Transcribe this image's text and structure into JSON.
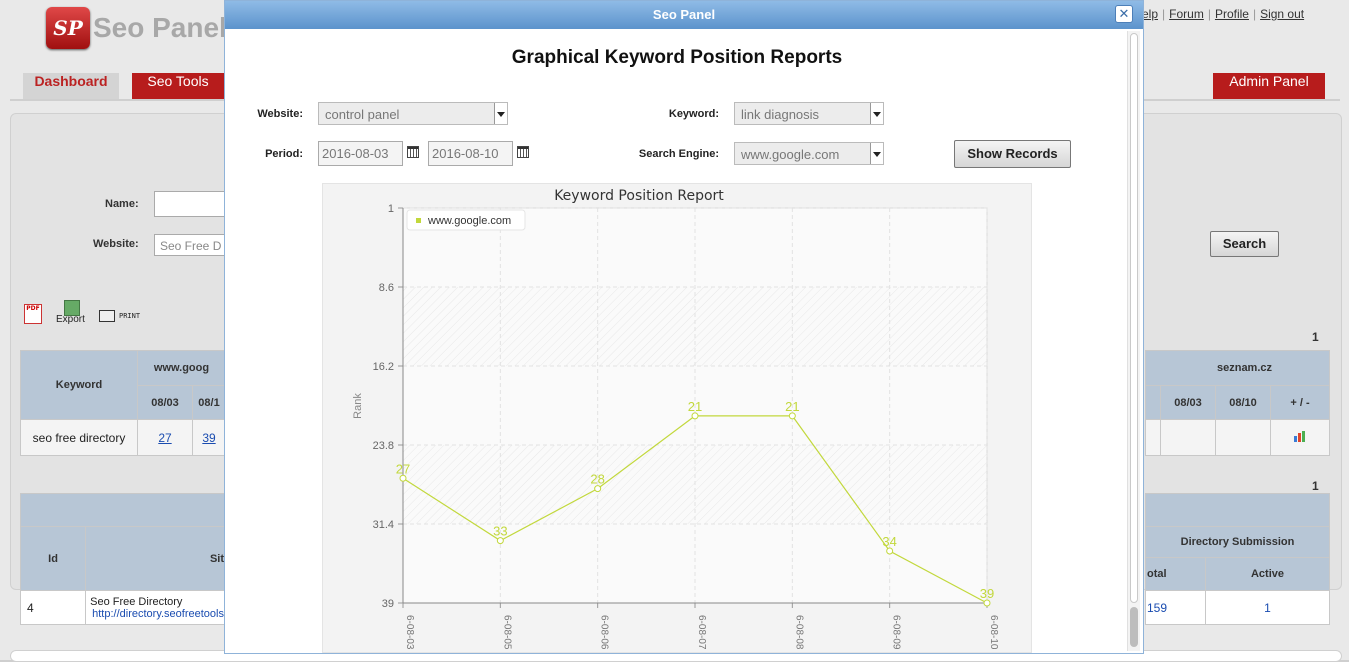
{
  "background": {
    "logo_mark": "SP",
    "logo_text": "Seo Panel",
    "top_links": [
      "elp",
      "Forum",
      "Profile",
      "Sign out"
    ],
    "tabs": {
      "dashboard": "Dashboard",
      "seo_tools": "Seo Tools",
      "admin_panel": "Admin Panel"
    },
    "form": {
      "name_label": "Name:",
      "website_label": "Website:",
      "website_value": "Seo Free D"
    },
    "search_button": "Search",
    "actions": {
      "pdf_icon_text": "PDF",
      "export_label": "Export",
      "print_label": "PRINT"
    },
    "page_number_1": "1",
    "page_number_2": "1",
    "keyword_table": {
      "keyword_header": "Keyword",
      "engine_left": "www.goog",
      "engine_right": "seznam.cz",
      "date_left_1": "08/03",
      "date_left_2": "08/1",
      "date_right_1": "08/03",
      "date_right_2": "08/10",
      "plusminus": "+ / -",
      "row_keyword": "seo free directory",
      "row_val_1": "27",
      "row_val_2": "39"
    },
    "site_table": {
      "id_header": "Id",
      "site_header": "Sit",
      "dir_sub_header": "Directory Submission",
      "total_header": "otal",
      "active_header": "Active",
      "row_id": "4",
      "row_site_name": "Seo Free Directory",
      "row_site_url": "http://directory.seofreetools",
      "row_total": "159",
      "row_active": "1"
    }
  },
  "modal": {
    "title": "Seo Panel",
    "close_glyph": "✕",
    "heading": "Graphical Keyword Position Reports",
    "website_label": "Website:",
    "website_value": "control panel",
    "keyword_label": "Keyword:",
    "keyword_value": "link diagnosis",
    "period_label": "Period:",
    "from_date": "2016-08-03",
    "to_date": "2016-08-10",
    "engine_label": "Search Engine:",
    "engine_value": "www.google.com",
    "show_records": "Show Records"
  },
  "chart_data": {
    "type": "line",
    "title": "Keyword Position Report",
    "ylabel": "Rank",
    "xlabel": "",
    "x": [
      "2016-08-03",
      "2016-08-05",
      "2016-08-06",
      "2016-08-07",
      "2016-08-08",
      "2016-08-09",
      "2016-08-10"
    ],
    "x_tick_labels": [
      "6-08-03",
      "6-08-05",
      "6-08-06",
      "6-08-07",
      "6-08-08",
      "6-08-09",
      "6-08-10"
    ],
    "series": [
      {
        "name": "www.google.com",
        "values": [
          27,
          33,
          28,
          21,
          21,
          34,
          39
        ]
      }
    ],
    "yticks": [
      "1",
      "8.6",
      "16.2",
      "23.8",
      "31.4",
      "39"
    ],
    "ylim": [
      1,
      39
    ],
    "y_inverted": true,
    "legend": "top-left",
    "grid": true,
    "color": "#c2d83c"
  }
}
